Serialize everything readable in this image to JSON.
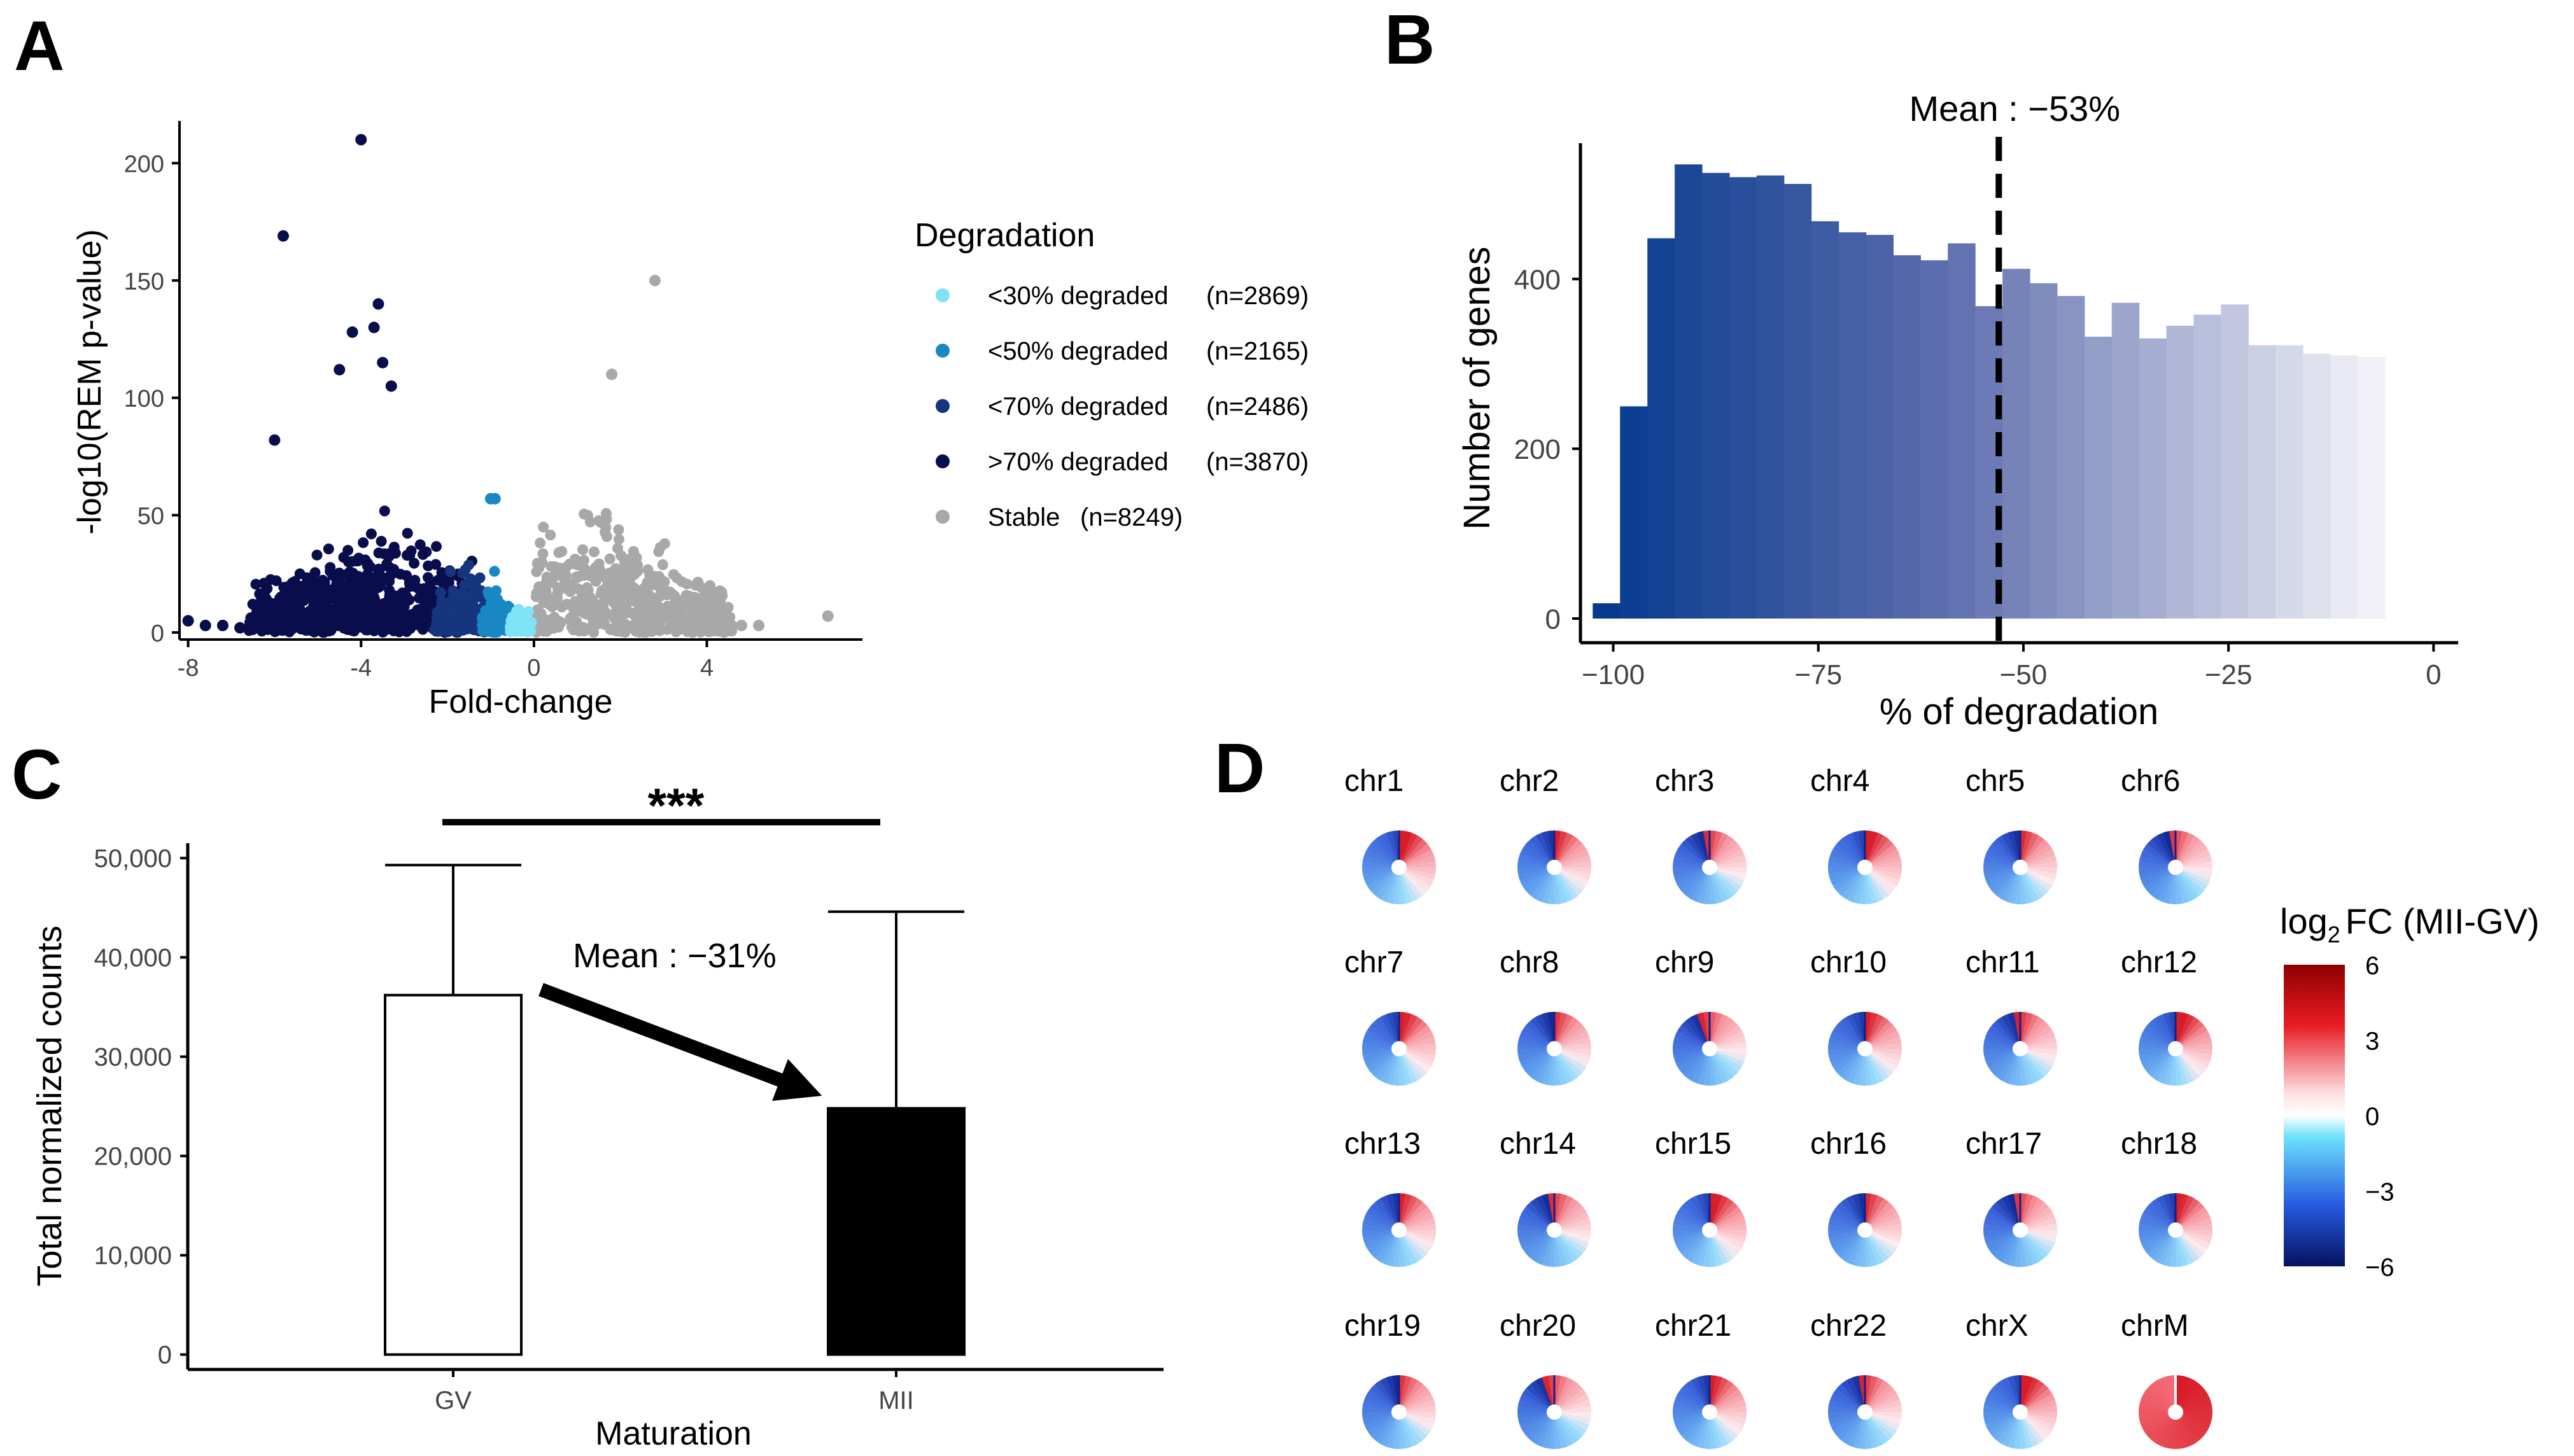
{
  "panels": {
    "a": "A",
    "b": "B",
    "c": "C",
    "d": "D"
  },
  "colors": {
    "lt30": "#7fe3f7",
    "lt50": "#1887c4",
    "lt70": "#16357f",
    "gt70": "#0a0d4c",
    "stable": "#a8a8a8",
    "axis": "#000000",
    "tick_text": "#444444",
    "hist_dark": "#0b3c8f",
    "hist_light": "#eeeef6",
    "bar_mii": "#000000",
    "bar_gv": "#ffffff"
  },
  "chart_data": [
    {
      "id": "A",
      "type": "scatter",
      "xlabel": "Fold-change",
      "ylabel": "-log10(REM p-value)",
      "xlim": [
        -8.2,
        7.6
      ],
      "ylim": [
        -3,
        218
      ],
      "xticks": [
        -8,
        -4,
        0,
        4
      ],
      "yticks": [
        0,
        50,
        100,
        150,
        200
      ],
      "legend_title": "Degradation",
      "legend": [
        {
          "key": "lt30",
          "label": "<30% degraded",
          "count": "(n=2869)"
        },
        {
          "key": "lt50",
          "label": "<50% degraded",
          "count": "(n=2165)"
        },
        {
          "key": "lt70",
          "label": "<70% degraded",
          "count": "(n=2486)"
        },
        {
          "key": "gt70",
          "label": ">70% degraded",
          "count": "(n=3870)"
        },
        {
          "key": "stable",
          "label": "Stable",
          "count": "(n=8249)"
        }
      ],
      "outliers": [
        {
          "x": -4.0,
          "y": 210,
          "g": "gt70"
        },
        {
          "x": -5.8,
          "y": 169,
          "g": "gt70"
        },
        {
          "x": 2.8,
          "y": 150,
          "g": "stable"
        },
        {
          "x": -3.6,
          "y": 140,
          "g": "gt70"
        },
        {
          "x": -3.7,
          "y": 130,
          "g": "gt70"
        },
        {
          "x": -4.2,
          "y": 128,
          "g": "gt70"
        },
        {
          "x": -3.5,
          "y": 115,
          "g": "gt70"
        },
        {
          "x": -4.5,
          "y": 112,
          "g": "gt70"
        },
        {
          "x": 1.8,
          "y": 110,
          "g": "stable"
        },
        {
          "x": -3.3,
          "y": 105,
          "g": "gt70"
        },
        {
          "x": -6.0,
          "y": 82,
          "g": "gt70"
        },
        {
          "x": -1.0,
          "y": 57,
          "g": "lt50"
        },
        {
          "x": -0.9,
          "y": 57,
          "g": "lt50"
        },
        {
          "x": -8.0,
          "y": 5,
          "g": "gt70"
        },
        {
          "x": -7.6,
          "y": 3,
          "g": "gt70"
        },
        {
          "x": -7.2,
          "y": 3,
          "g": "gt70"
        },
        {
          "x": -6.8,
          "y": 2,
          "g": "gt70"
        },
        {
          "x": 5.2,
          "y": 3,
          "g": "stable"
        },
        {
          "x": 6.8,
          "y": 7,
          "g": "stable"
        },
        {
          "x": 4.8,
          "y": 3,
          "g": "stable"
        }
      ]
    },
    {
      "id": "B",
      "type": "bar",
      "xlabel": "% of degradation",
      "ylabel": "Number of genes",
      "xlim": [
        -104,
        3
      ],
      "ylim": [
        0,
        560
      ],
      "xticks": [
        -100,
        -75,
        -50,
        -25,
        0
      ],
      "yticks": [
        0,
        200,
        400
      ],
      "bin_start": -102.5,
      "bin_width": 3.33,
      "values": [
        18,
        250,
        448,
        535,
        525,
        520,
        522,
        512,
        468,
        455,
        452,
        428,
        422,
        442,
        368,
        412,
        395,
        380,
        332,
        372,
        330,
        345,
        358,
        370,
        322,
        322,
        312,
        310,
        308
      ],
      "mean_x": -53,
      "mean_label": "Mean : −53%"
    },
    {
      "id": "C",
      "type": "bar",
      "xlabel": "Maturation",
      "ylabel": "Total normalized counts",
      "ylim": [
        -1500,
        51500
      ],
      "yticks": [
        0,
        10000,
        20000,
        30000,
        40000,
        50000
      ],
      "ytick_labels": [
        "0",
        "10,000",
        "20,000",
        "30,000",
        "40,000",
        "50,000"
      ],
      "categories": [
        "GV",
        "MII"
      ],
      "values": [
        36200,
        24800
      ],
      "errors_upper": [
        49300,
        44600
      ],
      "significance": "***",
      "mean_label": "Mean : −31%"
    },
    {
      "id": "D",
      "type": "pie",
      "legend_title": "FC (MII-GV)",
      "legend_title_prefix": "log",
      "legend_title_sub": "2",
      "scale": [
        6,
        3,
        0,
        -3,
        -6
      ],
      "scale_labels": [
        "6",
        "3",
        "0",
        "−3",
        "−6"
      ],
      "chromosomes": [
        "chr1",
        "chr2",
        "chr3",
        "chr4",
        "chr5",
        "chr6",
        "chr7",
        "chr8",
        "chr9",
        "chr10",
        "chr11",
        "chr12",
        "chr13",
        "chr14",
        "chr15",
        "chr16",
        "chr17",
        "chr18",
        "chr19",
        "chr20",
        "chr21",
        "chr22",
        "chrX",
        "chrM"
      ]
    }
  ]
}
